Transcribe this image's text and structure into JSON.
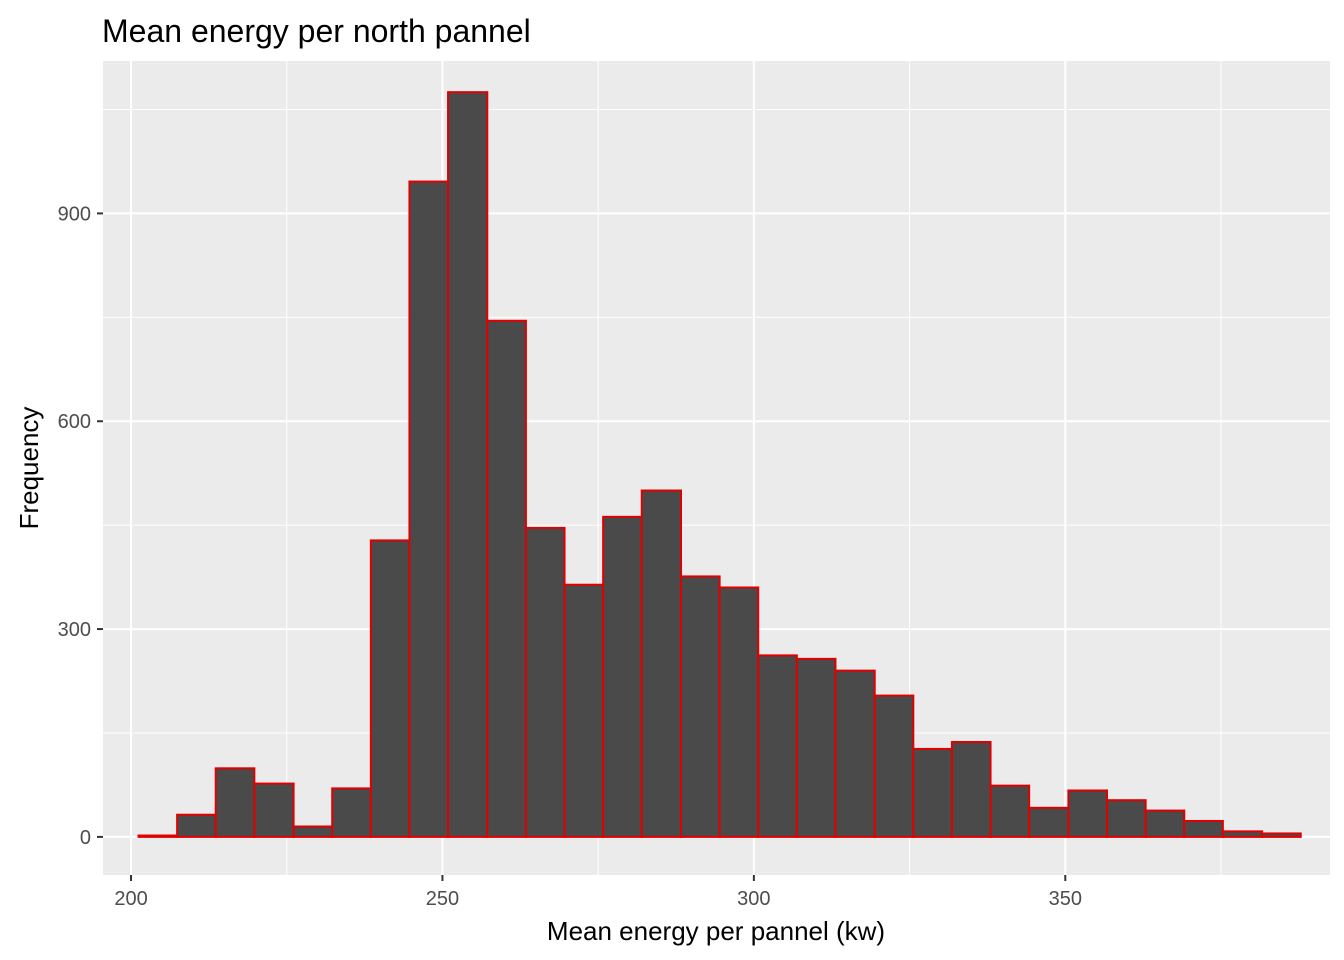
{
  "chart_data": {
    "type": "bar",
    "title": "Mean energy per north pannel",
    "xlabel": "Mean energy per pannel (kw)",
    "ylabel": "Frequency",
    "xlim": [
      195.5,
      392.5
    ],
    "ylim": [
      -55,
      1120
    ],
    "x_ticks": [
      {
        "value": 200,
        "label": "200"
      },
      {
        "value": 250,
        "label": "250"
      },
      {
        "value": 300,
        "label": "300"
      },
      {
        "value": 350,
        "label": "350"
      }
    ],
    "y_ticks": [
      {
        "value": 0,
        "label": "0"
      },
      {
        "value": 300,
        "label": "300"
      },
      {
        "value": 600,
        "label": "600"
      },
      {
        "value": 900,
        "label": "900"
      }
    ],
    "x_minor_breaks": [
      225,
      275,
      325,
      375
    ],
    "y_minor_breaks": [
      150,
      450,
      750,
      1050
    ],
    "grid": true,
    "panel_background": "#ebebeb",
    "gridline_color": "#ffffff",
    "bar_fill": "#4a4a4a",
    "bar_outline": "#e00000",
    "bin_width": 6.22,
    "bins": [
      {
        "x0": 201.2,
        "x1": 207.4,
        "count": 2
      },
      {
        "x0": 207.4,
        "x1": 213.6,
        "count": 32
      },
      {
        "x0": 213.6,
        "x1": 219.8,
        "count": 99
      },
      {
        "x0": 219.8,
        "x1": 226.1,
        "count": 77
      },
      {
        "x0": 226.1,
        "x1": 232.3,
        "count": 15
      },
      {
        "x0": 232.3,
        "x1": 238.5,
        "count": 70
      },
      {
        "x0": 238.5,
        "x1": 244.7,
        "count": 428
      },
      {
        "x0": 244.7,
        "x1": 250.9,
        "count": 946
      },
      {
        "x0": 250.9,
        "x1": 257.2,
        "count": 1075
      },
      {
        "x0": 257.2,
        "x1": 263.4,
        "count": 745
      },
      {
        "x0": 263.4,
        "x1": 269.6,
        "count": 446
      },
      {
        "x0": 269.6,
        "x1": 275.8,
        "count": 364
      },
      {
        "x0": 275.8,
        "x1": 282.0,
        "count": 462
      },
      {
        "x0": 282.0,
        "x1": 288.3,
        "count": 500
      },
      {
        "x0": 288.3,
        "x1": 294.5,
        "count": 376
      },
      {
        "x0": 294.5,
        "x1": 300.7,
        "count": 360
      },
      {
        "x0": 300.7,
        "x1": 306.9,
        "count": 262
      },
      {
        "x0": 306.9,
        "x1": 313.1,
        "count": 257
      },
      {
        "x0": 313.1,
        "x1": 319.4,
        "count": 240
      },
      {
        "x0": 319.4,
        "x1": 325.6,
        "count": 204
      },
      {
        "x0": 325.6,
        "x1": 331.8,
        "count": 127
      },
      {
        "x0": 331.8,
        "x1": 338.0,
        "count": 137
      },
      {
        "x0": 338.0,
        "x1": 344.2,
        "count": 74
      },
      {
        "x0": 344.2,
        "x1": 350.5,
        "count": 42
      },
      {
        "x0": 350.5,
        "x1": 356.7,
        "count": 67
      },
      {
        "x0": 356.7,
        "x1": 362.9,
        "count": 53
      },
      {
        "x0": 362.9,
        "x1": 369.1,
        "count": 38
      },
      {
        "x0": 369.1,
        "x1": 375.3,
        "count": 23
      },
      {
        "x0": 375.3,
        "x1": 381.6,
        "count": 8
      },
      {
        "x0": 381.6,
        "x1": 387.8,
        "count": 5
      }
    ]
  }
}
